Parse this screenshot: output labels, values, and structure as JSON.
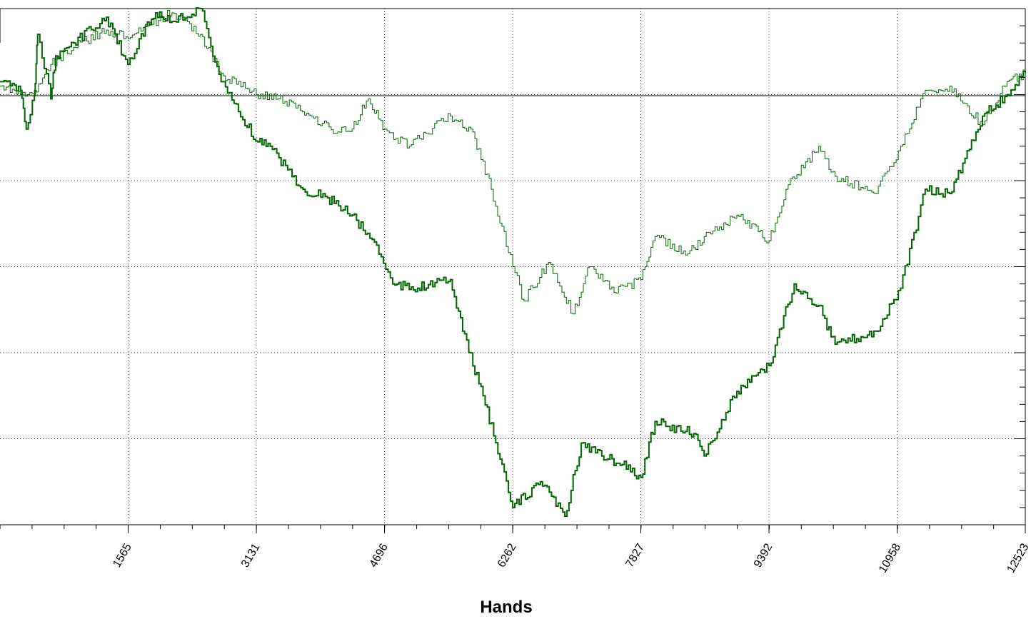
{
  "chart_data": {
    "type": "line",
    "title": "",
    "xlabel": "Hands",
    "ylabel": "",
    "xlim": [
      0,
      12523
    ],
    "ylim": [
      -500,
      100
    ],
    "grid": true,
    "x_ticks": [
      "1565",
      "3131",
      "4696",
      "6262",
      "7827",
      "9392",
      "10958",
      "12523"
    ],
    "series": [
      {
        "color": "#006400",
        "line_weight": "thick",
        "x": [
          0,
          250,
          320,
          420,
          460,
          620,
          680,
          900,
          1300,
          1560,
          1700,
          1900,
          2100,
          2450,
          2700,
          3150,
          3300,
          3700,
          4000,
          4300,
          4600,
          4796,
          5100,
          5500,
          5650,
          5900,
          6262,
          6600,
          6900,
          7100,
          7350,
          7600,
          7827,
          8000,
          8500,
          8600,
          9000,
          9392,
          9700,
          10000,
          10200,
          10700,
          11000,
          11300,
          11600,
          12000,
          12300,
          12523
        ],
        "y": [
          15,
          5,
          -40,
          0,
          70,
          -5,
          45,
          60,
          90,
          35,
          65,
          95,
          85,
          100,
          15,
          -55,
          -60,
          -110,
          -120,
          -140,
          -175,
          -220,
          -225,
          -215,
          -275,
          -350,
          -480,
          -450,
          -490,
          -405,
          -420,
          -430,
          -445,
          -380,
          -395,
          -420,
          -345,
          -315,
          -220,
          -245,
          -290,
          -275,
          -225,
          -110,
          -115,
          -25,
          0,
          25
        ]
      },
      {
        "color": "#006400",
        "line_weight": "thin",
        "x": [
          0,
          250,
          420,
          620,
          900,
          1300,
          1565,
          1800,
          2100,
          2450,
          2700,
          3131,
          3400,
          3800,
          4100,
          4300,
          4500,
          4700,
          5000,
          5200,
          5500,
          5750,
          6000,
          6262,
          6400,
          6700,
          7000,
          7200,
          7500,
          7827,
          8000,
          8400,
          8600,
          9000,
          9392,
          9600,
          10000,
          10200,
          10700,
          11000,
          11300,
          11600,
          12000,
          12300,
          12523
        ],
        "y": [
          10,
          0,
          5,
          35,
          55,
          75,
          65,
          80,
          95,
          70,
          25,
          0,
          -5,
          -25,
          -45,
          -40,
          -5,
          -40,
          -60,
          -45,
          -25,
          -40,
          -110,
          -200,
          -240,
          -195,
          -255,
          -200,
          -230,
          -215,
          -165,
          -185,
          -165,
          -140,
          -170,
          -110,
          -60,
          -95,
          -115,
          -60,
          5,
          10,
          -35,
          15,
          25
        ]
      }
    ]
  }
}
